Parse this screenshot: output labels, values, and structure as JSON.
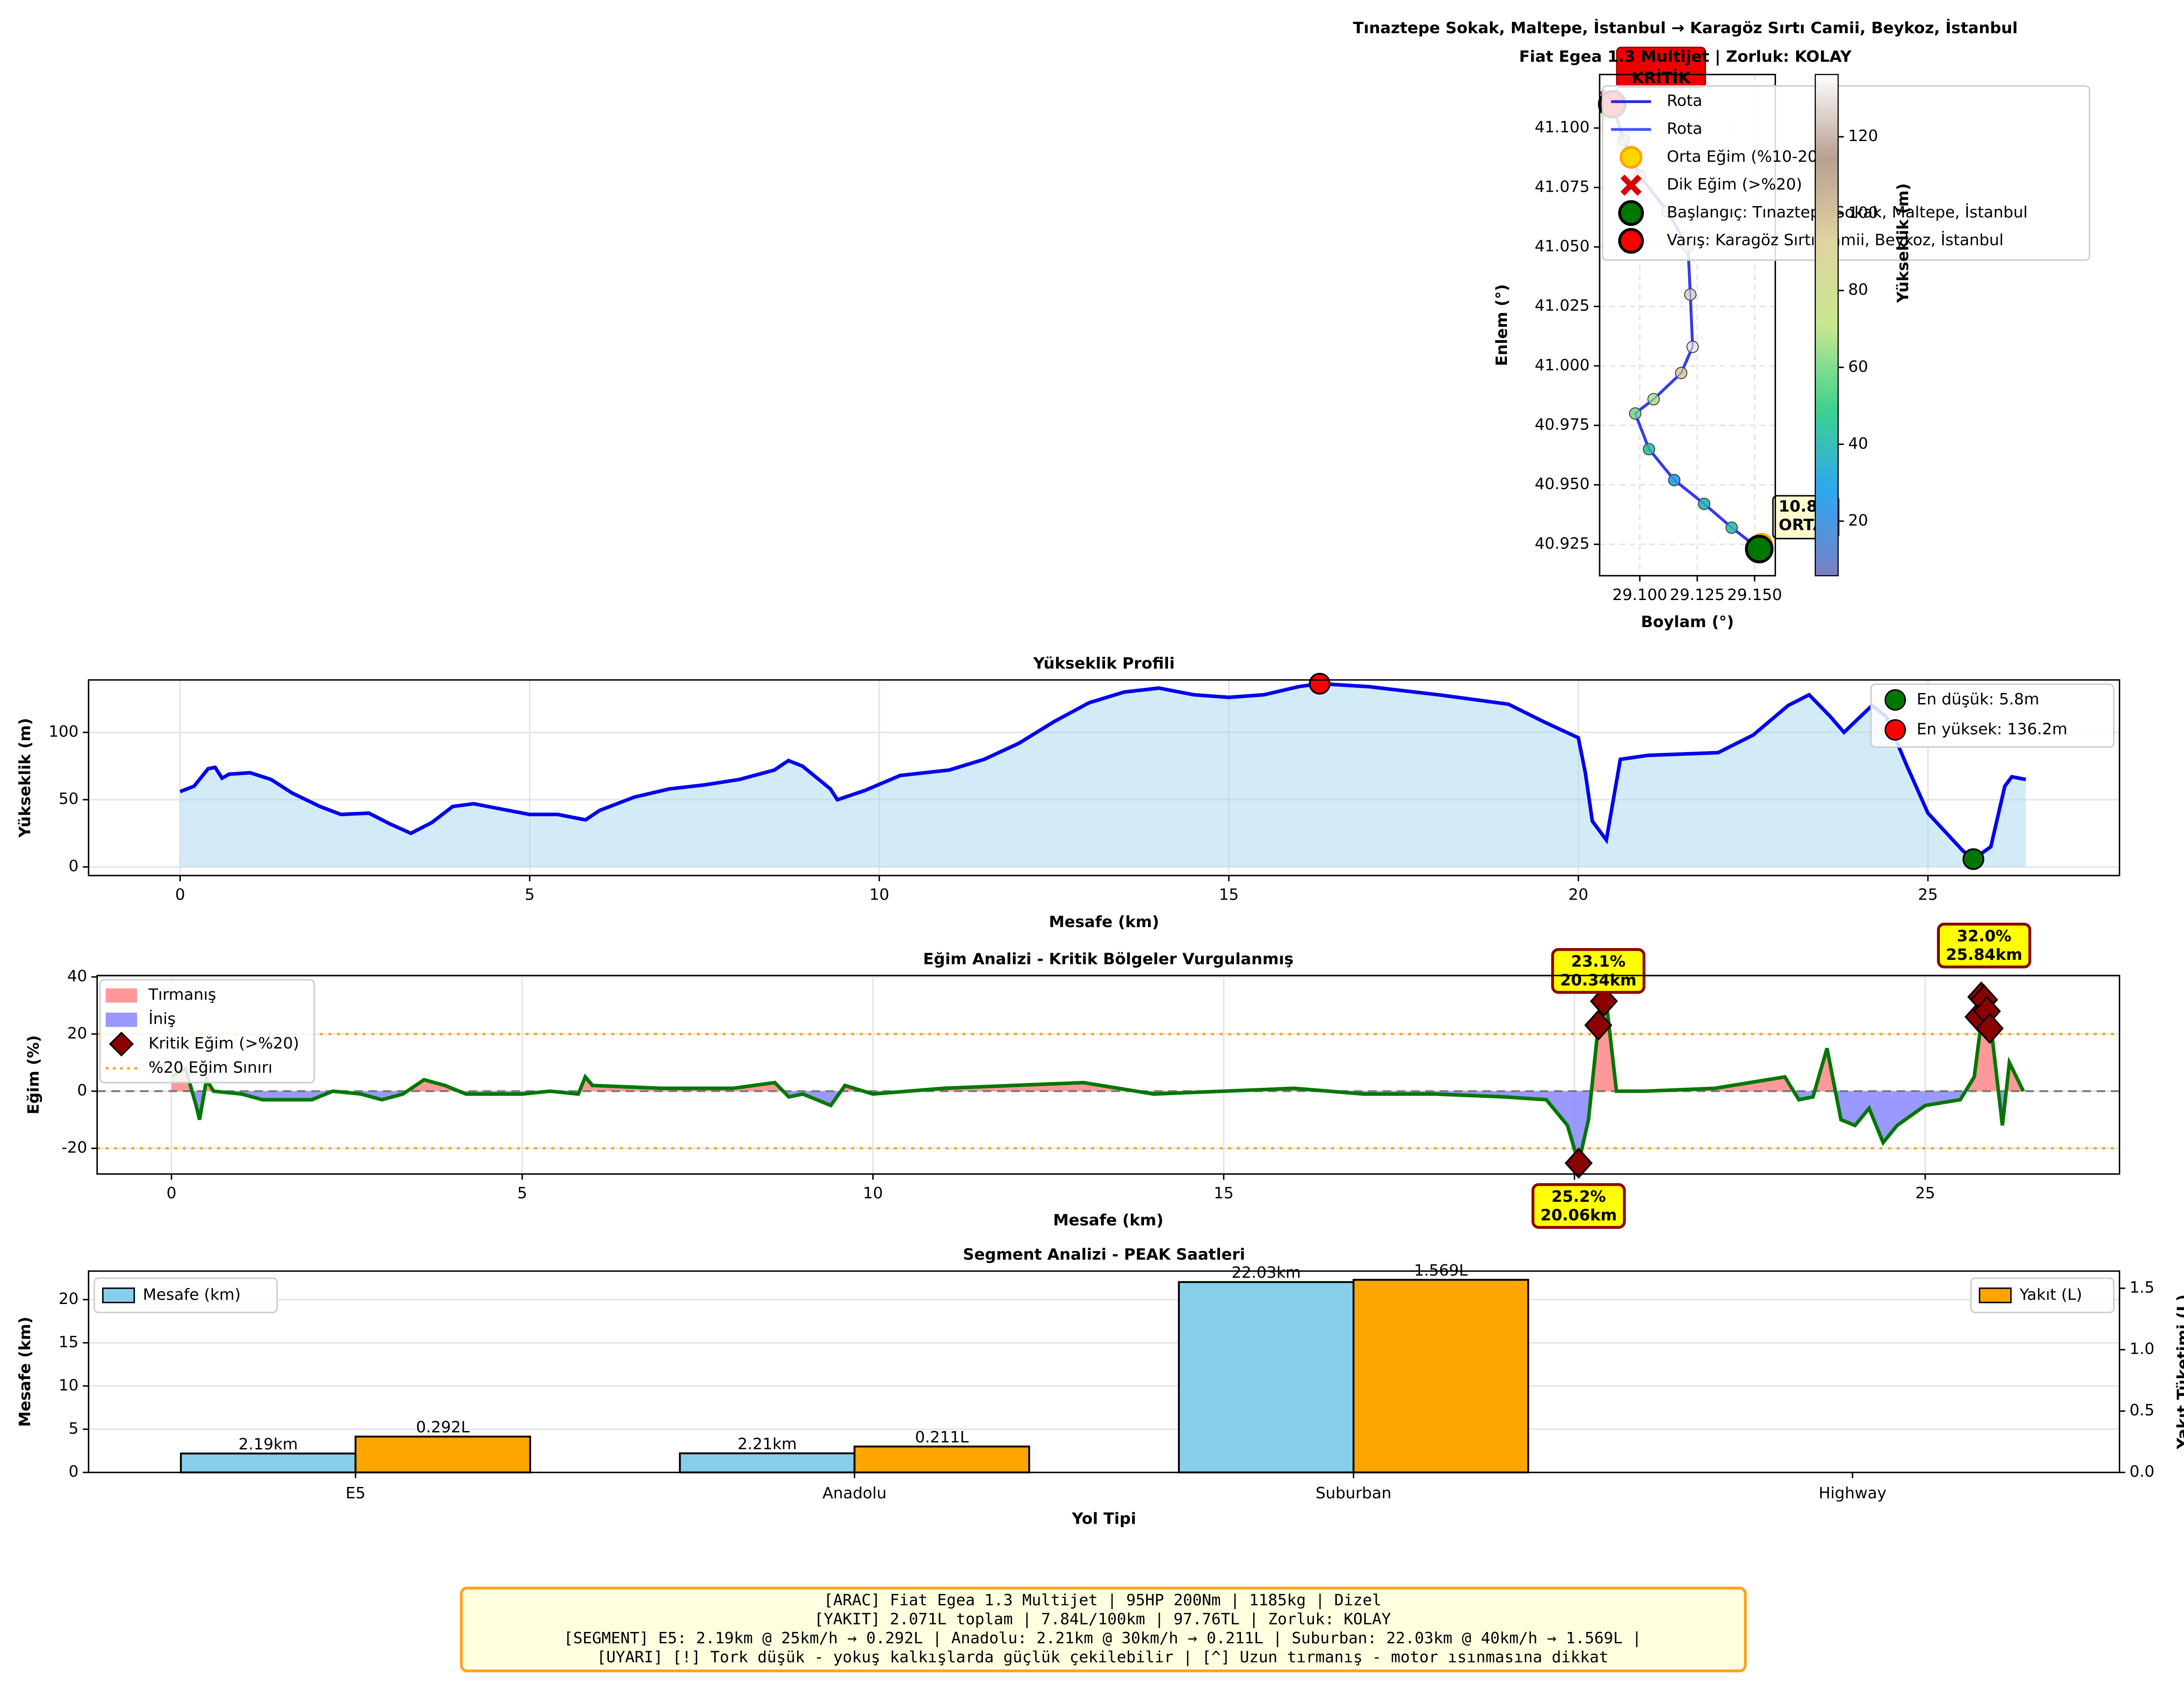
{
  "chart_data": [
    {
      "type": "map",
      "title": "Tınaztepe Sokak, Maltepe, İstanbul → Karagöz Sırtı Camii, Beykoz, İstanbul",
      "subtitle": "Fiat Egea 1.3 Multijet | Zorluk: KOLAY",
      "xlabel": "Boylam (°)",
      "ylabel": "Enlem (°)",
      "grid": true,
      "legend": "upper right",
      "xlim": [
        29.0825,
        29.159
      ],
      "ylim": [
        40.9118,
        41.1225
      ],
      "xticks": [
        {
          "value": 29.1,
          "label": "29.100"
        },
        29.125,
        {
          "value": 29.15,
          "label": "29.150"
        }
      ],
      "yticks": [
        40.925,
        {
          "value": 40.95,
          "label": "40.950"
        },
        40.975,
        {
          "value": 41.0,
          "label": "41.000"
        },
        41.025,
        {
          "value": 41.05,
          "label": "41.050"
        },
        41.075,
        {
          "value": 41.1,
          "label": "41.100"
        }
      ],
      "series": [
        {
          "name": "Rota",
          "color": "#2a2ae0",
          "x": [
            29.152,
            29.14,
            29.128,
            29.115,
            29.104,
            29.098,
            29.106,
            29.118,
            29.123,
            29.122,
            29.121,
            29.112,
            29.1,
            29.093,
            29.088
          ],
          "values": [
            40.923,
            40.932,
            40.942,
            40.952,
            40.965,
            40.98,
            40.986,
            40.997,
            41.008,
            41.03,
            41.05,
            41.065,
            41.08,
            41.095,
            41.11
          ],
          "elevation": [
            56,
            45,
            40,
            30,
            45,
            60,
            68,
            95,
            130,
            126,
            100,
            85,
            110,
            60,
            65
          ]
        },
        {
          "name": "Rota",
          "color": "#4455ff",
          "x": [
            29.152,
            29.14,
            29.128,
            29.115,
            29.104,
            29.098,
            29.106,
            29.118,
            29.123,
            29.122,
            29.121,
            29.112,
            29.1,
            29.093,
            29.088
          ],
          "values": [
            40.923,
            40.932,
            40.942,
            40.952,
            40.965,
            40.98,
            40.986,
            40.997,
            41.008,
            41.03,
            41.05,
            41.065,
            41.08,
            41.095,
            41.11
          ]
        },
        {
          "name": "Orta Eğim (%10-20)",
          "color": "#ffd700",
          "marker": "circle",
          "x": [
            29.153
          ],
          "values": [
            40.925
          ]
        },
        {
          "name": "Dik Eğim (>%20)",
          "color": "#dd0000",
          "marker": "x",
          "x": [
            29.087
          ],
          "values": [
            41.112
          ]
        },
        {
          "name": "Başlangıç: Tınaztepe Sokak, Maltepe, İstanbul",
          "color": "#007700",
          "marker": "big",
          "x": [
            29.152
          ],
          "values": [
            40.923
          ]
        },
        {
          "name": "Varış: Karagöz Sırtı Camii, Beykoz, İstanbul",
          "color": "#ff0000",
          "marker": "big",
          "x": [
            29.088
          ],
          "values": [
            41.11
          ]
        }
      ],
      "annotations": [
        {
          "lines": [
            "10.8%",
            "ORTA"
          ],
          "color": "#fffacd"
        },
        {
          "lines": [
            "KRİTİK"
          ],
          "color": "#ee0000"
        }
      ],
      "colorbar": {
        "label": "Yükseklik (m)",
        "lim": [
          5.8,
          136.2
        ],
        "ticks": [
          20,
          40,
          60,
          80,
          100,
          120
        ],
        "colors": [
          "#7a7fc4",
          "#2ea6f2",
          "#3ed28e",
          "#c8e890",
          "#e0d4a0",
          "#b8a090",
          "#ffffff"
        ]
      }
    },
    {
      "type": "area-line",
      "title": "Yükseklik Profili",
      "xlabel": "Mesafe (km)",
      "ylabel": "Yükseklik (m)",
      "grid": true,
      "legend": "upper right",
      "color": "#0000ee",
      "fill_color": "#a8d8ee",
      "xlim": [
        -1.31,
        27.74
      ],
      "ylim": [
        -6.4,
        139
      ],
      "xticks": [
        0,
        5,
        10,
        15,
        20,
        25
      ],
      "yticks": [
        0,
        50,
        100
      ],
      "x": [
        0,
        0.2,
        0.4,
        0.5,
        0.6,
        0.7,
        1.0,
        1.3,
        1.6,
        2.0,
        2.3,
        2.7,
        3.0,
        3.3,
        3.6,
        3.9,
        4.2,
        4.6,
        5.0,
        5.4,
        5.8,
        6.0,
        6.5,
        7.0,
        7.5,
        8.0,
        8.5,
        8.7,
        8.9,
        9.3,
        9.4,
        9.8,
        10.3,
        11.0,
        11.5,
        12.0,
        12.5,
        13.0,
        13.5,
        14.0,
        14.5,
        15.0,
        15.5,
        16.0,
        16.3,
        17.0,
        18.0,
        19.0,
        19.5,
        20.0,
        20.1,
        20.2,
        20.4,
        20.6,
        21.0,
        22.0,
        22.5,
        23.0,
        23.3,
        23.6,
        23.8,
        24.2,
        24.4,
        24.7,
        25.0,
        25.5,
        25.65,
        25.9,
        26.1,
        26.2,
        26.4
      ],
      "values": [
        56,
        60,
        73,
        74,
        66,
        69,
        70,
        65,
        55,
        45,
        39,
        40,
        32,
        25,
        33,
        45,
        47,
        43,
        39,
        39,
        35,
        42,
        52,
        58,
        61,
        65,
        72,
        79,
        75,
        58,
        50,
        57,
        68,
        72,
        80,
        92,
        108,
        122,
        130,
        133,
        128,
        126,
        128,
        134,
        136.2,
        134,
        128,
        121,
        108,
        96,
        70,
        34,
        20,
        80,
        83,
        85,
        98,
        120,
        128,
        112,
        100,
        120,
        112,
        75,
        40,
        12,
        5.8,
        15,
        60,
        67,
        65
      ],
      "markers": [
        {
          "name": "En düşük: 5.8m",
          "color": "#007700",
          "x": 25.65,
          "value": 5.8
        },
        {
          "name": "En yüksek: 136.2m",
          "color": "#ff0000",
          "x": 16.3,
          "value": 136.2
        }
      ]
    },
    {
      "type": "slope",
      "title": "Eğim Analizi - Kritik Bölgeler Vurgulanmış",
      "xlabel": "Mesafe (km)",
      "ylabel": "Eğim (%)",
      "grid": true,
      "legend": "upper left",
      "color": "#007700",
      "xlim": [
        -1.06,
        27.77
      ],
      "ylim": [
        -29,
        40.5
      ],
      "xticks": [
        0,
        5,
        10,
        15,
        20,
        25
      ],
      "yticks": [
        -20,
        0,
        20,
        40
      ],
      "x": [
        0,
        0.2,
        0.35,
        0.4,
        0.5,
        0.6,
        1.0,
        1.3,
        2.0,
        2.3,
        2.7,
        3.0,
        3.3,
        3.6,
        3.9,
        4.2,
        5.0,
        5.4,
        5.8,
        5.9,
        6.0,
        7.0,
        8.0,
        8.6,
        8.8,
        9.0,
        9.4,
        9.6,
        10.0,
        11.0,
        12.0,
        13.0,
        14.0,
        15.0,
        16.0,
        17.0,
        18.0,
        19.0,
        19.6,
        19.9,
        20.06,
        20.2,
        20.34,
        20.45,
        20.6,
        21.0,
        22.0,
        22.5,
        23.0,
        23.2,
        23.4,
        23.6,
        23.8,
        24.0,
        24.2,
        24.4,
        24.6,
        25.0,
        25.5,
        25.7,
        25.84,
        25.95,
        26.1,
        26.2,
        26.4
      ],
      "values": [
        5,
        8,
        -5,
        -10,
        4,
        0,
        -1,
        -3,
        -3,
        0,
        -1,
        -3,
        -1,
        4,
        2,
        -1,
        -1,
        0,
        -1,
        5,
        2,
        1,
        1,
        3,
        -2,
        -1,
        -5,
        2,
        -1,
        1,
        2,
        3,
        -1,
        0,
        1,
        -1,
        -1,
        -2,
        -3,
        -12,
        -25.2,
        -10,
        23.1,
        32,
        0,
        0,
        1,
        3,
        5,
        -3,
        -2,
        15,
        -10,
        -12,
        -6,
        -18,
        -12,
        -5,
        -3,
        5,
        32.0,
        20,
        -12,
        10,
        0
      ],
      "fills": [
        {
          "name": "Tırmanış",
          "color": "#ff8080"
        },
        {
          "name": "İniş",
          "color": "#8080ff"
        }
      ],
      "critical": {
        "name": "Kritik Eğim (>%20)",
        "color": "#8b0000",
        "x": [
          20.06,
          20.34,
          20.42,
          25.76,
          25.8,
          25.84,
          25.88,
          25.92
        ],
        "values": [
          -25.2,
          23.1,
          31.5,
          26,
          33,
          32.0,
          28,
          22
        ]
      },
      "limit": {
        "name": "%20 Eğim Sınırı",
        "color": "#ffa500",
        "values": [
          20,
          -20
        ]
      },
      "annotations": [
        {
          "lines": [
            "23.1%",
            "20.34km"
          ],
          "x": 20.34,
          "value": 23.1
        },
        {
          "lines": [
            "32.0%",
            "25.84km"
          ],
          "x": 25.84,
          "value": 32.0
        },
        {
          "lines": [
            "25.2%",
            "20.06km"
          ],
          "x": 20.06,
          "value": -25.2
        }
      ]
    },
    {
      "type": "bar",
      "title": "Segment Analizi - PEAK Saatleri",
      "xlabel": "Yol Tipi",
      "ylabel": "Mesafe (km)",
      "y2label": "Yakıt Tüketimi (L)",
      "grid": true,
      "categories": [
        "E5",
        "Anadolu",
        "Suburban",
        "Highway"
      ],
      "ylim": [
        0,
        23.3
      ],
      "yticks": [
        0,
        5,
        10,
        15,
        20
      ],
      "y2lim": [
        0,
        1.64
      ],
      "y2ticks": [
        {
          "value": 0,
          "label": "0.0"
        },
        0.5,
        {
          "value": 1,
          "label": "1.0"
        },
        1.5
      ],
      "series": [
        {
          "name": "Mesafe (km)",
          "color": "#87ceeb",
          "legend": "upper left",
          "values": [
            2.19,
            2.21,
            22.03,
            0
          ],
          "value_labels": [
            "2.19km",
            "2.21km",
            "22.03km",
            null
          ]
        },
        {
          "name": "Yakıt (L)",
          "color": "#ffa500",
          "axis": "y2",
          "legend": "upper right",
          "values": [
            0.292,
            0.211,
            1.569,
            0
          ],
          "value_labels": [
            "0.292L",
            "0.211L",
            "1.569L",
            null
          ]
        }
      ]
    }
  ],
  "info_box": {
    "lines": [
      "[ARAC] Fiat Egea 1.3 Multijet | 95HP 200Nm | 1185kg | Dizel",
      "[YAKIT] 2.071L toplam | 7.84L/100km | 97.76TL | Zorluk: KOLAY",
      "[SEGMENT] E5: 2.19km @ 25km/h → 0.292L  |  Anadolu: 2.21km @ 30km/h → 0.211L  |  Suburban: 22.03km @ 40km/h → 1.569L  |",
      "[UYARI] [!] Tork düşük - yokuş kalkışlarda güçlük çekilebilir | [^] Uzun tırmanış - motor ısınmasına dikkat"
    ]
  }
}
